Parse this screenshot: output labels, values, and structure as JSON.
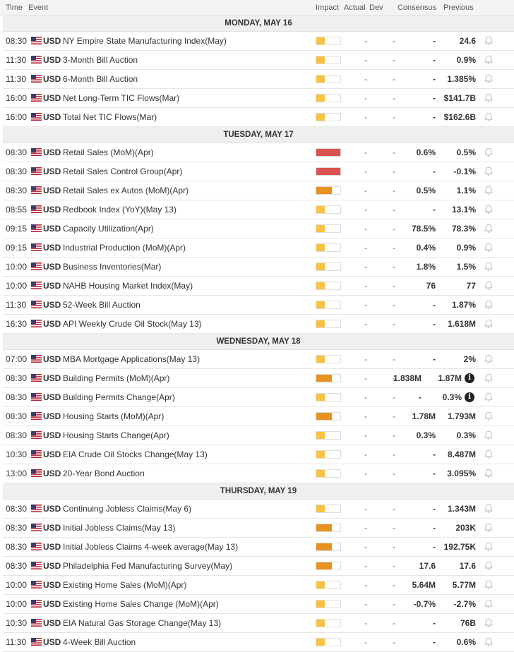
{
  "header": {
    "time": "Time",
    "event": "Event",
    "impact": "Impact",
    "actual": "Actual",
    "dev": "Dev",
    "consensus": "Consensus",
    "previous": "Previous"
  },
  "colors": {
    "low": "#f6c344",
    "medium": "#e8921f",
    "high": "#d9534f"
  },
  "days": [
    {
      "label": "MONDAY, MAY 16",
      "rows": [
        {
          "time": "08:30",
          "currency": "USD",
          "event": "NY Empire State Manufacturing Index(May)",
          "impact": "low",
          "actual": "-",
          "dev": "-",
          "consensus": "-",
          "previous": "24.6",
          "info": false
        },
        {
          "time": "11:30",
          "currency": "USD",
          "event": "3-Month Bill Auction",
          "impact": "low",
          "actual": "-",
          "dev": "-",
          "consensus": "-",
          "previous": "0.9%",
          "info": false
        },
        {
          "time": "11:30",
          "currency": "USD",
          "event": "6-Month Bill Auction",
          "impact": "low",
          "actual": "-",
          "dev": "-",
          "consensus": "-",
          "previous": "1.385%",
          "info": false
        },
        {
          "time": "16:00",
          "currency": "USD",
          "event": "Net Long-Term TIC Flows(Mar)",
          "impact": "low",
          "actual": "-",
          "dev": "-",
          "consensus": "-",
          "previous": "$141.7B",
          "info": false
        },
        {
          "time": "16:00",
          "currency": "USD",
          "event": "Total Net TIC Flows(Mar)",
          "impact": "low",
          "actual": "-",
          "dev": "-",
          "consensus": "-",
          "previous": "$162.6B",
          "info": false
        }
      ]
    },
    {
      "label": "TUESDAY, MAY 17",
      "rows": [
        {
          "time": "08:30",
          "currency": "USD",
          "event": "Retail Sales (MoM)(Apr)",
          "impact": "high",
          "actual": "-",
          "dev": "-",
          "consensus": "0.6%",
          "previous": "0.5%",
          "info": false
        },
        {
          "time": "08:30",
          "currency": "USD",
          "event": "Retail Sales Control Group(Apr)",
          "impact": "high",
          "actual": "-",
          "dev": "-",
          "consensus": "-",
          "previous": "-0.1%",
          "info": false
        },
        {
          "time": "08:30",
          "currency": "USD",
          "event": "Retail Sales ex Autos (MoM)(Apr)",
          "impact": "medium",
          "actual": "-",
          "dev": "-",
          "consensus": "0.5%",
          "previous": "1.1%",
          "info": false
        },
        {
          "time": "08:55",
          "currency": "USD",
          "event": "Redbook Index (YoY)(May 13)",
          "impact": "low",
          "actual": "-",
          "dev": "-",
          "consensus": "-",
          "previous": "13.1%",
          "info": false
        },
        {
          "time": "09:15",
          "currency": "USD",
          "event": "Capacity Utilization(Apr)",
          "impact": "low",
          "actual": "-",
          "dev": "-",
          "consensus": "78.5%",
          "previous": "78.3%",
          "info": false
        },
        {
          "time": "09:15",
          "currency": "USD",
          "event": "Industrial Production (MoM)(Apr)",
          "impact": "low",
          "actual": "-",
          "dev": "-",
          "consensus": "0.4%",
          "previous": "0.9%",
          "info": false
        },
        {
          "time": "10:00",
          "currency": "USD",
          "event": "Business Inventories(Mar)",
          "impact": "low",
          "actual": "-",
          "dev": "-",
          "consensus": "1.8%",
          "previous": "1.5%",
          "info": false
        },
        {
          "time": "10:00",
          "currency": "USD",
          "event": "NAHB Housing Market Index(May)",
          "impact": "low",
          "actual": "-",
          "dev": "-",
          "consensus": "76",
          "previous": "77",
          "info": false
        },
        {
          "time": "11:30",
          "currency": "USD",
          "event": "52-Week Bill Auction",
          "impact": "low",
          "actual": "-",
          "dev": "-",
          "consensus": "-",
          "previous": "1.87%",
          "info": false
        },
        {
          "time": "16:30",
          "currency": "USD",
          "event": "API Weekly Crude Oil Stock(May 13)",
          "impact": "low",
          "actual": "-",
          "dev": "-",
          "consensus": "-",
          "previous": "1.618M",
          "info": false
        }
      ]
    },
    {
      "label": "WEDNESDAY, MAY 18",
      "rows": [
        {
          "time": "07:00",
          "currency": "USD",
          "event": "MBA Mortgage Applications(May 13)",
          "impact": "low",
          "actual": "-",
          "dev": "-",
          "consensus": "-",
          "previous": "2%",
          "info": false
        },
        {
          "time": "08:30",
          "currency": "USD",
          "event": "Building Permits (MoM)(Apr)",
          "impact": "medium",
          "actual": "-",
          "dev": "-",
          "consensus": "1.838M",
          "previous": "1.87M",
          "info": true
        },
        {
          "time": "08:30",
          "currency": "USD",
          "event": "Building Permits Change(Apr)",
          "impact": "low",
          "actual": "-",
          "dev": "-",
          "consensus": "-",
          "previous": "0.3%",
          "info": true
        },
        {
          "time": "08:30",
          "currency": "USD",
          "event": "Housing Starts (MoM)(Apr)",
          "impact": "medium",
          "actual": "-",
          "dev": "-",
          "consensus": "1.78M",
          "previous": "1.793M",
          "info": false
        },
        {
          "time": "08:30",
          "currency": "USD",
          "event": "Housing Starts Change(Apr)",
          "impact": "low",
          "actual": "-",
          "dev": "-",
          "consensus": "0.3%",
          "previous": "0.3%",
          "info": false
        },
        {
          "time": "10:30",
          "currency": "USD",
          "event": "EIA Crude Oil Stocks Change(May 13)",
          "impact": "low",
          "actual": "-",
          "dev": "-",
          "consensus": "-",
          "previous": "8.487M",
          "info": false
        },
        {
          "time": "13:00",
          "currency": "USD",
          "event": "20-Year Bond Auction",
          "impact": "low",
          "actual": "-",
          "dev": "-",
          "consensus": "-",
          "previous": "3.095%",
          "info": false
        }
      ]
    },
    {
      "label": "THURSDAY, MAY 19",
      "rows": [
        {
          "time": "08:30",
          "currency": "USD",
          "event": "Continuing Jobless Claims(May 6)",
          "impact": "low",
          "actual": "-",
          "dev": "-",
          "consensus": "-",
          "previous": "1.343M",
          "info": false
        },
        {
          "time": "08:30",
          "currency": "USD",
          "event": "Initial Jobless Claims(May 13)",
          "impact": "medium",
          "actual": "-",
          "dev": "-",
          "consensus": "-",
          "previous": "203K",
          "info": false
        },
        {
          "time": "08:30",
          "currency": "USD",
          "event": "Initial Jobless Claims 4-week average(May 13)",
          "impact": "medium",
          "actual": "-",
          "dev": "-",
          "consensus": "-",
          "previous": "192.75K",
          "info": false
        },
        {
          "time": "08:30",
          "currency": "USD",
          "event": "Philadelphia Fed Manufacturing Survey(May)",
          "impact": "medium",
          "actual": "-",
          "dev": "-",
          "consensus": "17.6",
          "previous": "17.6",
          "info": false
        },
        {
          "time": "10:00",
          "currency": "USD",
          "event": "Existing Home Sales (MoM)(Apr)",
          "impact": "low",
          "actual": "-",
          "dev": "-",
          "consensus": "5.64M",
          "previous": "5.77M",
          "info": false
        },
        {
          "time": "10:00",
          "currency": "USD",
          "event": "Existing Home Sales Change (MoM)(Apr)",
          "impact": "low",
          "actual": "-",
          "dev": "-",
          "consensus": "-0.7%",
          "previous": "-2.7%",
          "info": false
        },
        {
          "time": "10:30",
          "currency": "USD",
          "event": "EIA Natural Gas Storage Change(May 13)",
          "impact": "low",
          "actual": "-",
          "dev": "-",
          "consensus": "-",
          "previous": "76B",
          "info": false
        },
        {
          "time": "11:30",
          "currency": "USD",
          "event": "4-Week Bill Auction",
          "impact": "low",
          "actual": "-",
          "dev": "-",
          "consensus": "-",
          "previous": "0.6%",
          "info": false
        }
      ]
    }
  ]
}
